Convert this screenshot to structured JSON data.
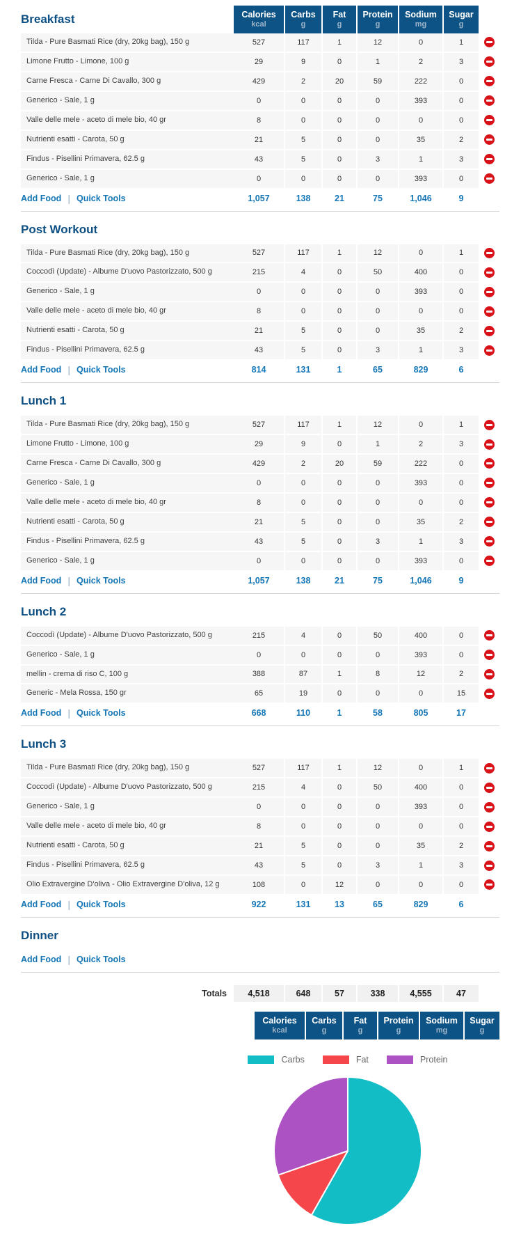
{
  "columns": [
    {
      "label": "Calories",
      "unit": "kcal"
    },
    {
      "label": "Carbs",
      "unit": "g"
    },
    {
      "label": "Fat",
      "unit": "g"
    },
    {
      "label": "Protein",
      "unit": "g"
    },
    {
      "label": "Sodium",
      "unit": "mg"
    },
    {
      "label": "Sugar",
      "unit": "g"
    }
  ],
  "links": {
    "add_food": "Add Food",
    "quick_tools": "Quick Tools",
    "separator": "|"
  },
  "meals": [
    {
      "name": "Breakfast",
      "show_header": true,
      "rows": [
        {
          "food": "Tilda - Pure Basmati Rice (dry, 20kg bag), 150 g",
          "values": [
            "527",
            "117",
            "1",
            "12",
            "0",
            "1"
          ]
        },
        {
          "food": "Limone Frutto - Limone, 100 g",
          "values": [
            "29",
            "9",
            "0",
            "1",
            "2",
            "3"
          ]
        },
        {
          "food": "Carne Fresca - Carne Di Cavallo, 300 g",
          "values": [
            "429",
            "2",
            "20",
            "59",
            "222",
            "0"
          ]
        },
        {
          "food": "Generico - Sale, 1 g",
          "values": [
            "0",
            "0",
            "0",
            "0",
            "393",
            "0"
          ]
        },
        {
          "food": "Valle delle mele - aceto di mele bio, 40 gr",
          "values": [
            "8",
            "0",
            "0",
            "0",
            "0",
            "0"
          ]
        },
        {
          "food": "Nutrienti esatti - Carota, 50 g",
          "values": [
            "21",
            "5",
            "0",
            "0",
            "35",
            "2"
          ]
        },
        {
          "food": "Findus - Pisellini Primavera, 62.5 g",
          "values": [
            "43",
            "5",
            "0",
            "3",
            "1",
            "3"
          ]
        },
        {
          "food": "Generico - Sale, 1 g",
          "values": [
            "0",
            "0",
            "0",
            "0",
            "393",
            "0"
          ]
        }
      ],
      "totals": [
        "1,057",
        "138",
        "21",
        "75",
        "1,046",
        "9"
      ]
    },
    {
      "name": "Post Workout",
      "show_header": false,
      "rows": [
        {
          "food": "Tilda - Pure Basmati Rice (dry, 20kg bag), 150 g",
          "values": [
            "527",
            "117",
            "1",
            "12",
            "0",
            "1"
          ]
        },
        {
          "food": "Coccodì (Update) - Albume D'uovo Pastorizzato, 500 g",
          "values": [
            "215",
            "4",
            "0",
            "50",
            "400",
            "0"
          ]
        },
        {
          "food": "Generico - Sale, 1 g",
          "values": [
            "0",
            "0",
            "0",
            "0",
            "393",
            "0"
          ]
        },
        {
          "food": "Valle delle mele - aceto di mele bio, 40 gr",
          "values": [
            "8",
            "0",
            "0",
            "0",
            "0",
            "0"
          ]
        },
        {
          "food": "Nutrienti esatti - Carota, 50 g",
          "values": [
            "21",
            "5",
            "0",
            "0",
            "35",
            "2"
          ]
        },
        {
          "food": "Findus - Pisellini Primavera, 62.5 g",
          "values": [
            "43",
            "5",
            "0",
            "3",
            "1",
            "3"
          ]
        }
      ],
      "totals": [
        "814",
        "131",
        "1",
        "65",
        "829",
        "6"
      ]
    },
    {
      "name": "Lunch 1",
      "show_header": false,
      "rows": [
        {
          "food": "Tilda - Pure Basmati Rice (dry, 20kg bag), 150 g",
          "values": [
            "527",
            "117",
            "1",
            "12",
            "0",
            "1"
          ]
        },
        {
          "food": "Limone Frutto - Limone, 100 g",
          "values": [
            "29",
            "9",
            "0",
            "1",
            "2",
            "3"
          ]
        },
        {
          "food": "Carne Fresca - Carne Di Cavallo, 300 g",
          "values": [
            "429",
            "2",
            "20",
            "59",
            "222",
            "0"
          ]
        },
        {
          "food": "Generico - Sale, 1 g",
          "values": [
            "0",
            "0",
            "0",
            "0",
            "393",
            "0"
          ]
        },
        {
          "food": "Valle delle mele - aceto di mele bio, 40 gr",
          "values": [
            "8",
            "0",
            "0",
            "0",
            "0",
            "0"
          ]
        },
        {
          "food": "Nutrienti esatti - Carota, 50 g",
          "values": [
            "21",
            "5",
            "0",
            "0",
            "35",
            "2"
          ]
        },
        {
          "food": "Findus - Pisellini Primavera, 62.5 g",
          "values": [
            "43",
            "5",
            "0",
            "3",
            "1",
            "3"
          ]
        },
        {
          "food": "Generico - Sale, 1 g",
          "values": [
            "0",
            "0",
            "0",
            "0",
            "393",
            "0"
          ]
        }
      ],
      "totals": [
        "1,057",
        "138",
        "21",
        "75",
        "1,046",
        "9"
      ]
    },
    {
      "name": "Lunch 2",
      "show_header": false,
      "rows": [
        {
          "food": "Coccodì (Update) - Albume D'uovo Pastorizzato, 500 g",
          "values": [
            "215",
            "4",
            "0",
            "50",
            "400",
            "0"
          ]
        },
        {
          "food": "Generico - Sale, 1 g",
          "values": [
            "0",
            "0",
            "0",
            "0",
            "393",
            "0"
          ]
        },
        {
          "food": "mellin - crema di riso C, 100 g",
          "values": [
            "388",
            "87",
            "1",
            "8",
            "12",
            "2"
          ]
        },
        {
          "food": "Generic - Mela Rossa, 150 gr",
          "values": [
            "65",
            "19",
            "0",
            "0",
            "0",
            "15"
          ]
        }
      ],
      "totals": [
        "668",
        "110",
        "1",
        "58",
        "805",
        "17"
      ]
    },
    {
      "name": "Lunch 3",
      "show_header": false,
      "rows": [
        {
          "food": "Tilda - Pure Basmati Rice (dry, 20kg bag), 150 g",
          "values": [
            "527",
            "117",
            "1",
            "12",
            "0",
            "1"
          ]
        },
        {
          "food": "Coccodì (Update) - Albume D'uovo Pastorizzato, 500 g",
          "values": [
            "215",
            "4",
            "0",
            "50",
            "400",
            "0"
          ]
        },
        {
          "food": "Generico - Sale, 1 g",
          "values": [
            "0",
            "0",
            "0",
            "0",
            "393",
            "0"
          ]
        },
        {
          "food": "Valle delle mele - aceto di mele bio, 40 gr",
          "values": [
            "8",
            "0",
            "0",
            "0",
            "0",
            "0"
          ]
        },
        {
          "food": "Nutrienti esatti - Carota, 50 g",
          "values": [
            "21",
            "5",
            "0",
            "0",
            "35",
            "2"
          ]
        },
        {
          "food": "Findus - Pisellini Primavera, 62.5 g",
          "values": [
            "43",
            "5",
            "0",
            "3",
            "1",
            "3"
          ]
        },
        {
          "food": "Olio Extravergine D'oliva - Olio Extravergine D'oliva, 12 g",
          "values": [
            "108",
            "0",
            "12",
            "0",
            "0",
            "0"
          ]
        }
      ],
      "totals": [
        "922",
        "131",
        "13",
        "65",
        "829",
        "6"
      ]
    },
    {
      "name": "Dinner",
      "show_header": false,
      "rows": [],
      "totals": null
    }
  ],
  "totals_row": {
    "label": "Totals",
    "values": [
      "4,518",
      "648",
      "57",
      "338",
      "4,555",
      "47"
    ]
  },
  "chart_data": {
    "type": "pie",
    "title": "",
    "legend_position": "top",
    "slices": [
      {
        "label": "Carbs",
        "grams": 648,
        "pct": 58.2,
        "color": "#12bdc5"
      },
      {
        "label": "Fat",
        "grams": 57,
        "pct": 11.5,
        "color": "#f4464b"
      },
      {
        "label": "Protein",
        "grams": 338,
        "pct": 30.3,
        "color": "#ad52c2"
      }
    ],
    "start_angle_deg": 0,
    "direction": "clockwise"
  },
  "colors": {
    "header_bg": "#0e5385",
    "header_unit_text": "#9cb4c9",
    "section_title": "#0d4f82",
    "link_blue": "#1476b5",
    "row_bg": "#f6f6f6",
    "totals_cell_bg": "#f1f1f1",
    "delete_red": "#d9121a"
  }
}
